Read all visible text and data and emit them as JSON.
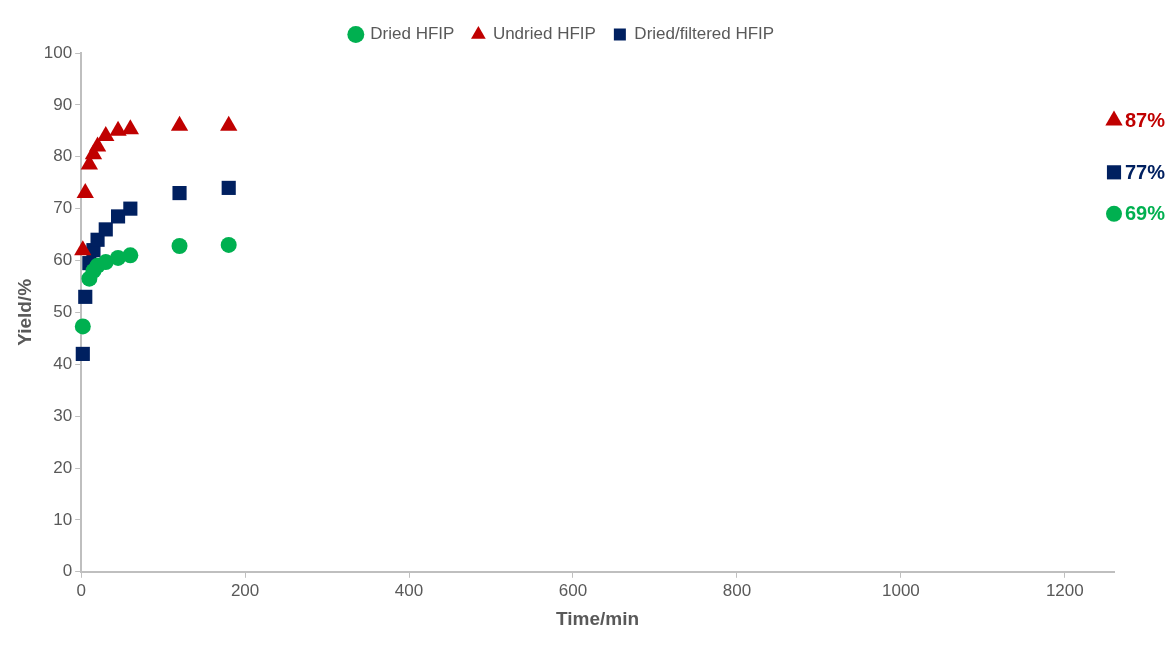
{
  "chart_data": {
    "type": "scatter",
    "xlabel": "Time/min",
    "ylabel": "Yield/%",
    "xlim": [
      0,
      1260
    ],
    "xticks": [
      0,
      200,
      400,
      600,
      800,
      1000,
      1200
    ],
    "ylim": [
      0,
      100
    ],
    "yticks": [
      0,
      10,
      20,
      30,
      40,
      50,
      60,
      70,
      80,
      90,
      100
    ],
    "grid": false,
    "legend": "top",
    "series": [
      {
        "name": "Dried HFIP",
        "color": "#00b050",
        "marker": "circle",
        "x": [
          2,
          10,
          15,
          20,
          30,
          45,
          60,
          120,
          180,
          1260
        ],
        "values": [
          47.3,
          56.5,
          58,
          59,
          59.7,
          60.5,
          61,
          62.8,
          63,
          69
        ],
        "value_labels": [
          null,
          null,
          null,
          null,
          null,
          null,
          null,
          null,
          null,
          "69%"
        ]
      },
      {
        "name": "Undried HFIP",
        "color": "#c00000",
        "marker": "triangle",
        "x": [
          2,
          5,
          10,
          15,
          20,
          30,
          45,
          60,
          120,
          180,
          1260
        ],
        "values": [
          62,
          73,
          78.5,
          80.5,
          82,
          84,
          85,
          85.3,
          86,
          86,
          87
        ],
        "value_labels": [
          null,
          null,
          null,
          null,
          null,
          null,
          null,
          null,
          null,
          null,
          "87%"
        ]
      },
      {
        "name": "Dried/filtered HFIP",
        "color": "#002060",
        "marker": "square",
        "x": [
          2,
          5,
          10,
          15,
          20,
          30,
          45,
          60,
          120,
          180,
          1260
        ],
        "values": [
          42,
          53,
          59.5,
          62,
          64,
          66,
          68.5,
          70,
          73,
          74,
          77
        ],
        "value_labels": [
          null,
          null,
          null,
          null,
          null,
          null,
          null,
          null,
          null,
          null,
          "77%"
        ]
      }
    ]
  }
}
